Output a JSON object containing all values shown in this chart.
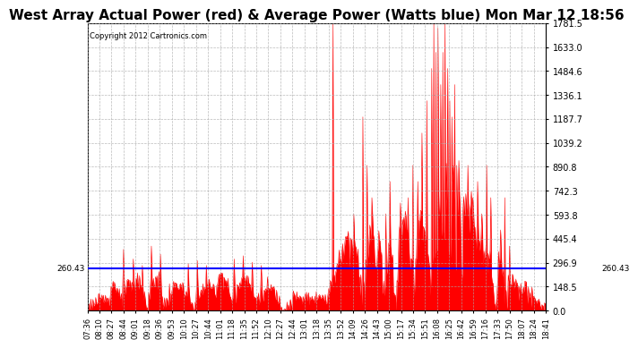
{
  "title": "West Array Actual Power (red) & Average Power (Watts blue) Mon Mar 12 18:56",
  "copyright": "Copyright 2012 Cartronics.com",
  "ymax": 1781.5,
  "ymin": 0.0,
  "yticks": [
    0.0,
    148.5,
    296.9,
    445.4,
    593.8,
    742.3,
    890.8,
    1039.2,
    1187.7,
    1336.1,
    1484.6,
    1633.0,
    1781.5
  ],
  "avg_power": 260.43,
  "fill_color": "#FF0000",
  "line_color": "#FF0000",
  "avg_color": "#0000FF",
  "bg_color": "#FFFFFF",
  "grid_color": "#AAAAAA",
  "title_fontsize": 11,
  "xtick_labels": [
    "07:36",
    "08:10",
    "08:27",
    "08:44",
    "09:01",
    "09:18",
    "09:36",
    "09:53",
    "10:10",
    "10:27",
    "10:44",
    "11:01",
    "11:18",
    "11:35",
    "11:52",
    "12:10",
    "12:27",
    "12:44",
    "13:01",
    "13:18",
    "13:35",
    "13:52",
    "14:09",
    "14:26",
    "14:43",
    "15:00",
    "15:17",
    "15:34",
    "15:51",
    "16:08",
    "16:25",
    "16:42",
    "16:59",
    "17:16",
    "17:33",
    "17:50",
    "18:07",
    "18:24",
    "18:41"
  ],
  "n_points": 660
}
